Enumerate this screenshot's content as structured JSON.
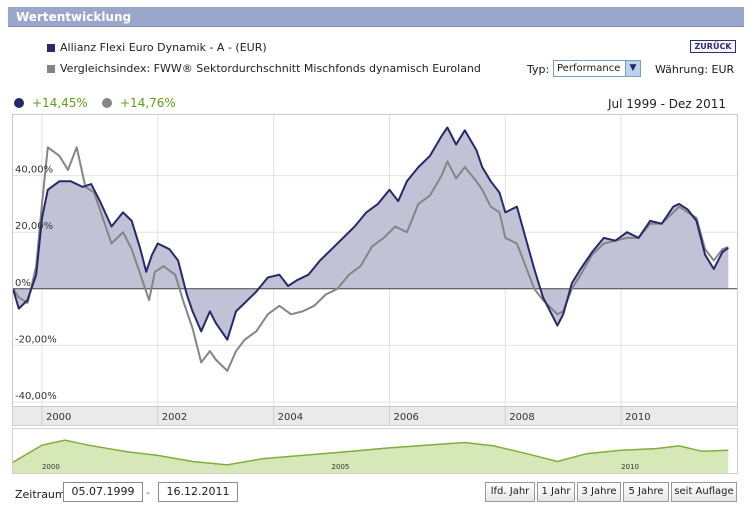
{
  "widget": {
    "title": "Wertentwicklung",
    "back_label": "ZURÜCK"
  },
  "legend": {
    "fund": {
      "label": "Allianz Flexi Euro Dynamik - A - (EUR)",
      "color": "#26296a"
    },
    "index": {
      "label": "Vergleichsindex: FWW® Sektordurchschnitt Mischfonds dynamisch Euroland",
      "color": "#858585"
    }
  },
  "controls": {
    "type_label": "Typ:",
    "type_value": "Performance",
    "currency_label": "Währung: EUR"
  },
  "performance": {
    "fund_value": "+14,45%",
    "index_value": "+14,76%",
    "period": "Jul 1999 - Dez 2011"
  },
  "chart_data": {
    "type": "area",
    "title": "Wertentwicklung",
    "xlabel": "",
    "ylabel": "",
    "x_range": [
      1999.5,
      2012.0
    ],
    "ylim": [
      -40,
      60
    ],
    "y_ticks": [
      40,
      20,
      0,
      -20,
      -40
    ],
    "y_tick_labels": [
      "40,00%",
      "20,00%",
      "0%",
      "-20,00%",
      "-40,00%"
    ],
    "x_ticks": [
      2000,
      2002,
      2004,
      2006,
      2008,
      2010
    ],
    "x_tick_labels": [
      "2000",
      "2002",
      "2004",
      "2006",
      "2008",
      "2010"
    ],
    "series": [
      {
        "name": "Allianz Flexi Euro Dynamik - A - (EUR)",
        "color": "#26296a",
        "fill": "#c2c2d6",
        "points": [
          [
            1999.5,
            0
          ],
          [
            1999.6,
            -7
          ],
          [
            1999.75,
            -4
          ],
          [
            1999.9,
            5
          ],
          [
            2000.0,
            25
          ],
          [
            2000.1,
            35
          ],
          [
            2000.3,
            38
          ],
          [
            2000.5,
            38
          ],
          [
            2000.7,
            36
          ],
          [
            2000.85,
            37
          ],
          [
            2001.0,
            31
          ],
          [
            2001.2,
            22
          ],
          [
            2001.4,
            27
          ],
          [
            2001.55,
            24
          ],
          [
            2001.7,
            14
          ],
          [
            2001.8,
            6
          ],
          [
            2001.9,
            12
          ],
          [
            2002.0,
            16
          ],
          [
            2002.2,
            14
          ],
          [
            2002.35,
            10
          ],
          [
            2002.5,
            -2
          ],
          [
            2002.6,
            -8
          ],
          [
            2002.75,
            -15
          ],
          [
            2002.9,
            -8
          ],
          [
            2003.0,
            -12
          ],
          [
            2003.2,
            -18
          ],
          [
            2003.35,
            -8
          ],
          [
            2003.5,
            -5
          ],
          [
            2003.7,
            -1
          ],
          [
            2003.9,
            4
          ],
          [
            2004.1,
            5
          ],
          [
            2004.25,
            1
          ],
          [
            2004.4,
            3
          ],
          [
            2004.6,
            5
          ],
          [
            2004.8,
            10
          ],
          [
            2005.0,
            14
          ],
          [
            2005.2,
            18
          ],
          [
            2005.4,
            22
          ],
          [
            2005.6,
            27
          ],
          [
            2005.8,
            30
          ],
          [
            2006.0,
            35
          ],
          [
            2006.15,
            31
          ],
          [
            2006.3,
            38
          ],
          [
            2006.5,
            43
          ],
          [
            2006.7,
            47
          ],
          [
            2006.9,
            54
          ],
          [
            2007.0,
            57
          ],
          [
            2007.15,
            51
          ],
          [
            2007.3,
            56
          ],
          [
            2007.5,
            49
          ],
          [
            2007.6,
            43
          ],
          [
            2007.75,
            38
          ],
          [
            2007.9,
            34
          ],
          [
            2008.0,
            27
          ],
          [
            2008.2,
            29
          ],
          [
            2008.35,
            18
          ],
          [
            2008.5,
            7
          ],
          [
            2008.65,
            -3
          ],
          [
            2008.9,
            -13
          ],
          [
            2009.0,
            -9
          ],
          [
            2009.15,
            2
          ],
          [
            2009.3,
            7
          ],
          [
            2009.5,
            13
          ],
          [
            2009.7,
            18
          ],
          [
            2009.9,
            17
          ],
          [
            2010.1,
            20
          ],
          [
            2010.3,
            18
          ],
          [
            2010.5,
            24
          ],
          [
            2010.7,
            23
          ],
          [
            2010.9,
            29
          ],
          [
            2011.0,
            30
          ],
          [
            2011.15,
            28
          ],
          [
            2011.3,
            24
          ],
          [
            2011.45,
            12
          ],
          [
            2011.6,
            7
          ],
          [
            2011.75,
            13
          ],
          [
            2011.85,
            14.45
          ]
        ]
      },
      {
        "name": "Vergleichsindex: FWW® Sektordurchschnitt Mischfonds dynamisch Euroland",
        "color": "#858585",
        "points": [
          [
            1999.5,
            0
          ],
          [
            1999.6,
            -3
          ],
          [
            1999.75,
            -5
          ],
          [
            1999.9,
            8
          ],
          [
            2000.0,
            30
          ],
          [
            2000.1,
            50
          ],
          [
            2000.3,
            47
          ],
          [
            2000.45,
            42
          ],
          [
            2000.6,
            50
          ],
          [
            2000.75,
            36
          ],
          [
            2000.9,
            34
          ],
          [
            2001.0,
            28
          ],
          [
            2001.2,
            16
          ],
          [
            2001.4,
            20
          ],
          [
            2001.55,
            14
          ],
          [
            2001.7,
            5
          ],
          [
            2001.85,
            -4
          ],
          [
            2001.95,
            6
          ],
          [
            2002.1,
            8
          ],
          [
            2002.3,
            5
          ],
          [
            2002.45,
            -5
          ],
          [
            2002.6,
            -14
          ],
          [
            2002.75,
            -26
          ],
          [
            2002.9,
            -22
          ],
          [
            2003.0,
            -25
          ],
          [
            2003.2,
            -29
          ],
          [
            2003.35,
            -22
          ],
          [
            2003.5,
            -18
          ],
          [
            2003.7,
            -15
          ],
          [
            2003.9,
            -9
          ],
          [
            2004.1,
            -6
          ],
          [
            2004.3,
            -9
          ],
          [
            2004.5,
            -8
          ],
          [
            2004.7,
            -6
          ],
          [
            2004.9,
            -2
          ],
          [
            2005.1,
            0
          ],
          [
            2005.3,
            5
          ],
          [
            2005.5,
            8
          ],
          [
            2005.7,
            15
          ],
          [
            2005.9,
            18
          ],
          [
            2006.1,
            22
          ],
          [
            2006.3,
            20
          ],
          [
            2006.5,
            30
          ],
          [
            2006.7,
            33
          ],
          [
            2006.9,
            40
          ],
          [
            2007.0,
            45
          ],
          [
            2007.15,
            39
          ],
          [
            2007.3,
            43
          ],
          [
            2007.5,
            38
          ],
          [
            2007.6,
            35
          ],
          [
            2007.75,
            29
          ],
          [
            2007.9,
            27
          ],
          [
            2008.0,
            18
          ],
          [
            2008.2,
            16
          ],
          [
            2008.35,
            8
          ],
          [
            2008.5,
            0
          ],
          [
            2008.65,
            -4
          ],
          [
            2008.9,
            -9
          ],
          [
            2009.0,
            -8
          ],
          [
            2009.15,
            0
          ],
          [
            2009.3,
            5
          ],
          [
            2009.5,
            12
          ],
          [
            2009.7,
            16
          ],
          [
            2009.9,
            17
          ],
          [
            2010.1,
            18
          ],
          [
            2010.3,
            18
          ],
          [
            2010.5,
            23
          ],
          [
            2010.7,
            23
          ],
          [
            2010.9,
            27
          ],
          [
            2011.0,
            29
          ],
          [
            2011.15,
            27
          ],
          [
            2011.3,
            25
          ],
          [
            2011.45,
            14
          ],
          [
            2011.6,
            10
          ],
          [
            2011.75,
            14
          ],
          [
            2011.85,
            14.76
          ]
        ]
      }
    ]
  },
  "overview": {
    "labels": [
      "2000",
      "2005",
      "2010"
    ],
    "points": [
      [
        1999.5,
        20
      ],
      [
        2000.0,
        70
      ],
      [
        2000.4,
        85
      ],
      [
        2000.8,
        70
      ],
      [
        2001.5,
        50
      ],
      [
        2002.0,
        40
      ],
      [
        2002.6,
        22
      ],
      [
        2003.2,
        12
      ],
      [
        2003.8,
        30
      ],
      [
        2004.5,
        40
      ],
      [
        2005.2,
        50
      ],
      [
        2006.0,
        62
      ],
      [
        2006.8,
        72
      ],
      [
        2007.3,
        78
      ],
      [
        2007.8,
        68
      ],
      [
        2008.3,
        48
      ],
      [
        2008.9,
        22
      ],
      [
        2009.4,
        45
      ],
      [
        2010.0,
        55
      ],
      [
        2010.6,
        60
      ],
      [
        2011.0,
        68
      ],
      [
        2011.4,
        52
      ],
      [
        2011.85,
        55
      ]
    ]
  },
  "footer": {
    "zeitraum_label": "Zeitraum:",
    "from_date": "05.07.1999",
    "to_date": "16.12.2011",
    "separator": "-",
    "buttons": [
      "lfd. Jahr",
      "1 Jahr",
      "3 Jahre",
      "5 Jahre",
      "seit Auflage"
    ]
  }
}
